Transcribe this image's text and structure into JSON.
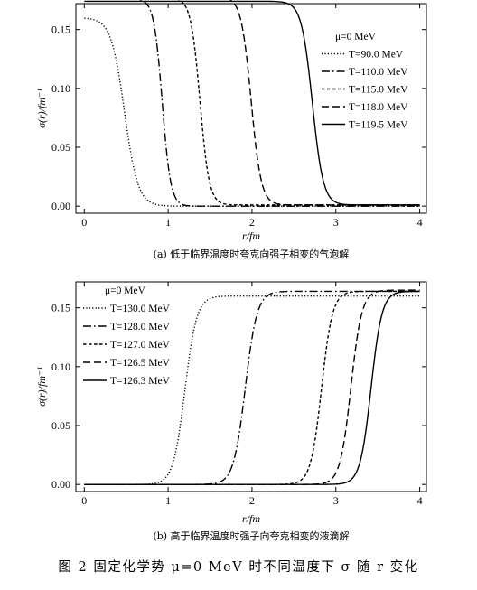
{
  "figure": {
    "caption": "图 2   固定化学势 μ=0 MeV 时不同温度下 σ 随 r 变化"
  },
  "chart_data": [
    {
      "type": "line",
      "subtitle": "(a) 低于临界温度时夸克向强子相变的气泡解",
      "xlabel": "r/fm",
      "ylabel": "σ(r)/fm⁻¹",
      "xlim": [
        -0.1,
        4.08
      ],
      "ylim": [
        -0.006,
        0.172
      ],
      "xticks": [
        "0",
        "1",
        "2",
        "3",
        "4"
      ],
      "yticks": [
        "0.00",
        "0.05",
        "0.10",
        "0.15"
      ],
      "legend_title": "μ=0 MeV",
      "legend_position": "right",
      "series": [
        {
          "name": "T=90.0 MeV",
          "dash": "dotted",
          "kind": "bubble",
          "low": 0.0,
          "high": 0.16,
          "r0": 0.48,
          "w": 0.16
        },
        {
          "name": "T=110.0 MeV",
          "dash": "dashdot",
          "kind": "bubble",
          "low": 0.0,
          "high": 0.176,
          "r0": 0.93,
          "w": 0.1
        },
        {
          "name": "T=115.0 MeV",
          "dash": "short-dash",
          "kind": "bubble",
          "low": 0.001,
          "high": 0.177,
          "r0": 1.38,
          "w": 0.11
        },
        {
          "name": "T=118.0 MeV",
          "dash": "long-dash",
          "kind": "bubble",
          "low": 0.001,
          "high": 0.178,
          "r0": 1.99,
          "w": 0.12
        },
        {
          "name": "T=119.5 MeV",
          "dash": "solid",
          "kind": "bubble",
          "low": 0.001,
          "high": 0.174,
          "r0": 2.72,
          "w": 0.13
        }
      ]
    },
    {
      "type": "line",
      "subtitle": "(b) 高于临界温度时强子向夸克相变的液滴解",
      "xlabel": "r/fm",
      "ylabel": "σ(r)/fm⁻¹",
      "xlim": [
        -0.1,
        4.08
      ],
      "ylim": [
        -0.006,
        0.172
      ],
      "xticks": [
        "0",
        "1",
        "2",
        "3",
        "4"
      ],
      "yticks": [
        "0.00",
        "0.05",
        "0.10",
        "0.15"
      ],
      "legend_title": "μ=0 MeV",
      "legend_position": "top-left",
      "series": [
        {
          "name": "T=130.0 MeV",
          "dash": "dotted",
          "kind": "droplet",
          "low": 0.0,
          "high": 0.16,
          "r0": 1.2,
          "w": 0.14
        },
        {
          "name": "T=128.0 MeV",
          "dash": "dashdot",
          "kind": "droplet",
          "low": 0.0,
          "high": 0.164,
          "r0": 1.92,
          "w": 0.14
        },
        {
          "name": "T=127.0 MeV",
          "dash": "short-dash",
          "kind": "droplet",
          "low": 0.0,
          "high": 0.164,
          "r0": 2.83,
          "w": 0.13
        },
        {
          "name": "T=126.5 MeV",
          "dash": "long-dash",
          "kind": "droplet",
          "low": 0.0,
          "high": 0.165,
          "r0": 3.18,
          "w": 0.13
        },
        {
          "name": "T=126.3 MeV",
          "dash": "solid",
          "kind": "droplet",
          "low": 0.0,
          "high": 0.164,
          "r0": 3.42,
          "w": 0.13
        }
      ]
    }
  ]
}
